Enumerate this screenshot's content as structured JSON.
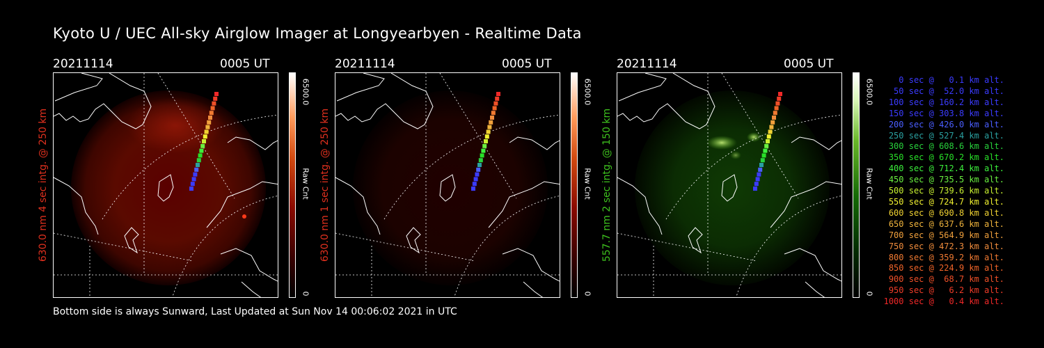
{
  "title": "Kyoto U / UEC All-sky Airglow Imager at Longyearbyen - Realtime Data",
  "footer": "Bottom side is always Sunward, Last Updated at Sun Nov 14 00:06:02 2021 in UTC",
  "panels": [
    {
      "date": "20211114",
      "time": "0005 UT",
      "ylabel": "630.0 nm 4 sec intg. @ 250 km",
      "label_color": "#e0301e",
      "colorbar": {
        "max": "6500.0",
        "unit": "Raw Cnt",
        "min": "0"
      }
    },
    {
      "date": "20211114",
      "time": "0005 UT",
      "ylabel": "630.0 nm 1 sec intg. @ 250 km",
      "label_color": "#e0301e",
      "colorbar": {
        "max": "6500.0",
        "unit": "Raw Cnt",
        "min": "0"
      }
    },
    {
      "date": "20211114",
      "time": "0005 UT",
      "ylabel": "557.7 nm 2 sec intg. @ 150 km",
      "label_color": "#3ec21e",
      "colorbar": {
        "max": "6500.0",
        "unit": "Raw Cnt",
        "min": "0"
      }
    }
  ],
  "legend": [
    {
      "text": "0 sec @   0.1 km alt.",
      "color": "#3b3bff"
    },
    {
      "text": "50 sec @  52.0 km alt.",
      "color": "#3b3bff"
    },
    {
      "text": "100 sec @ 160.2 km alt.",
      "color": "#3b3bff"
    },
    {
      "text": "150 sec @ 303.8 km alt.",
      "color": "#3b3bff"
    },
    {
      "text": "200 sec @ 426.0 km alt.",
      "color": "#4a5eff"
    },
    {
      "text": "250 sec @ 527.4 km alt.",
      "color": "#2aa0a0"
    },
    {
      "text": "300 sec @ 608.6 km alt.",
      "color": "#28d23c"
    },
    {
      "text": "350 sec @ 670.2 km alt.",
      "color": "#28e028"
    },
    {
      "text": "400 sec @ 712.4 km alt.",
      "color": "#3cf03c"
    },
    {
      "text": "450 sec @ 735.5 km alt.",
      "color": "#6af040"
    },
    {
      "text": "500 sec @ 739.6 km alt.",
      "color": "#c8f030"
    },
    {
      "text": "550 sec @ 724.7 km alt.",
      "color": "#f0f030"
    },
    {
      "text": "600 sec @ 690.8 km alt.",
      "color": "#f0d232"
    },
    {
      "text": "650 sec @ 637.6 km alt.",
      "color": "#f0b43c"
    },
    {
      "text": "700 sec @ 564.9 km alt.",
      "color": "#f0a03c"
    },
    {
      "text": "750 sec @ 472.3 km alt.",
      "color": "#f08c3c"
    },
    {
      "text": "800 sec @ 359.2 km alt.",
      "color": "#f07a32"
    },
    {
      "text": "850 sec @ 224.9 km alt.",
      "color": "#f06428"
    },
    {
      "text": "900 sec @  68.7 km alt.",
      "color": "#f05028"
    },
    {
      "text": "950 sec @   6.2 km alt.",
      "color": "#f03c28"
    },
    {
      "text": "1000 sec @   0.4 km alt.",
      "color": "#f02828"
    }
  ]
}
